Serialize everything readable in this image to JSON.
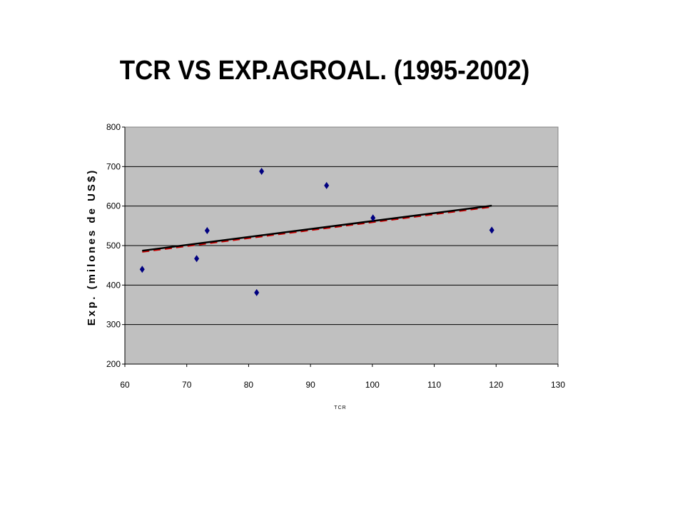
{
  "chart_data": {
    "type": "scatter",
    "title": "TCR VS EXP.AGROAL. (1995-2002)",
    "xlabel": "TCR",
    "ylabel": "Exp. (milones de US$)",
    "xlim": [
      60,
      130
    ],
    "ylim": [
      200,
      800
    ],
    "xticks": [
      60,
      70,
      80,
      90,
      100,
      110,
      120,
      130
    ],
    "yticks": [
      200,
      300,
      400,
      500,
      600,
      700,
      800
    ],
    "grid": "horizontal",
    "series": [
      {
        "points": [
          {
            "x": 62.8,
            "y": 440
          },
          {
            "x": 71.6,
            "y": 467
          },
          {
            "x": 73.3,
            "y": 538
          },
          {
            "x": 81.3,
            "y": 381
          },
          {
            "x": 82.1,
            "y": 688
          },
          {
            "x": 92.6,
            "y": 652
          },
          {
            "x": 100.1,
            "y": 570
          },
          {
            "x": 119.3,
            "y": 539
          }
        ]
      }
    ],
    "trendline": {
      "x": [
        62.8,
        119.3
      ],
      "y": [
        487,
        601
      ]
    },
    "colors": {
      "plot_background": "#c0c0c0",
      "marker": "#000080",
      "trendline": "#000000",
      "trendline_shadow": "#cc0000"
    }
  }
}
